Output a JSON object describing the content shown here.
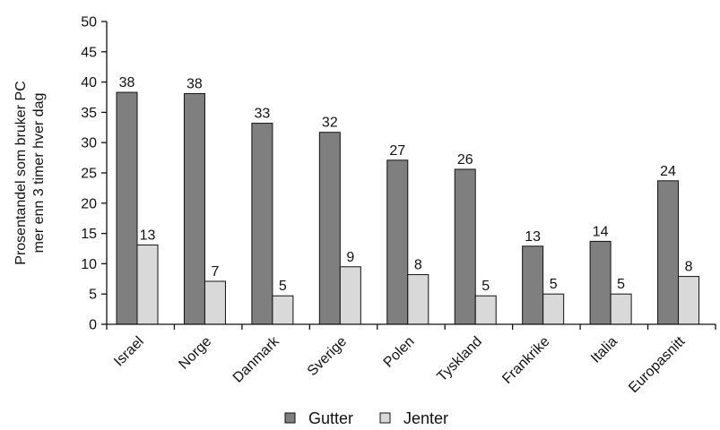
{
  "chart_data": {
    "type": "bar",
    "ylabel_lines": [
      "Prosentandel som bruker PC",
      "mer enn 3 timer hver dag"
    ],
    "xlabel": "",
    "ylim": [
      0,
      50
    ],
    "yticks": [
      0,
      5,
      10,
      15,
      20,
      25,
      30,
      35,
      40,
      45,
      50
    ],
    "ytick_labels": [
      "0",
      "5",
      "10",
      "15",
      "20",
      "25",
      "30",
      "35",
      "40",
      "45",
      "50"
    ],
    "categories": [
      "Israel",
      "Norge",
      "Danmark",
      "Sverige",
      "Polen",
      "Tyskland",
      "Frankrike",
      "Italia",
      "Europasnitt"
    ],
    "series": [
      {
        "name": "Gutter",
        "color": "#7f7f7f",
        "values": [
          38.3,
          38.1,
          33.2,
          31.7,
          27.1,
          25.6,
          12.9,
          13.7,
          23.7
        ],
        "labels": [
          "38",
          "38",
          "33",
          "32",
          "27",
          "26",
          "13",
          "14",
          "24"
        ]
      },
      {
        "name": "Jenter",
        "color": "#d9d9d9",
        "values": [
          13.1,
          7.1,
          4.7,
          9.5,
          8.2,
          4.7,
          5.0,
          5.0,
          7.9
        ],
        "labels": [
          "13",
          "7",
          "5",
          "9",
          "8",
          "5",
          "5",
          "5",
          "8"
        ]
      }
    ],
    "grid": false,
    "legend_position": "bottom"
  }
}
